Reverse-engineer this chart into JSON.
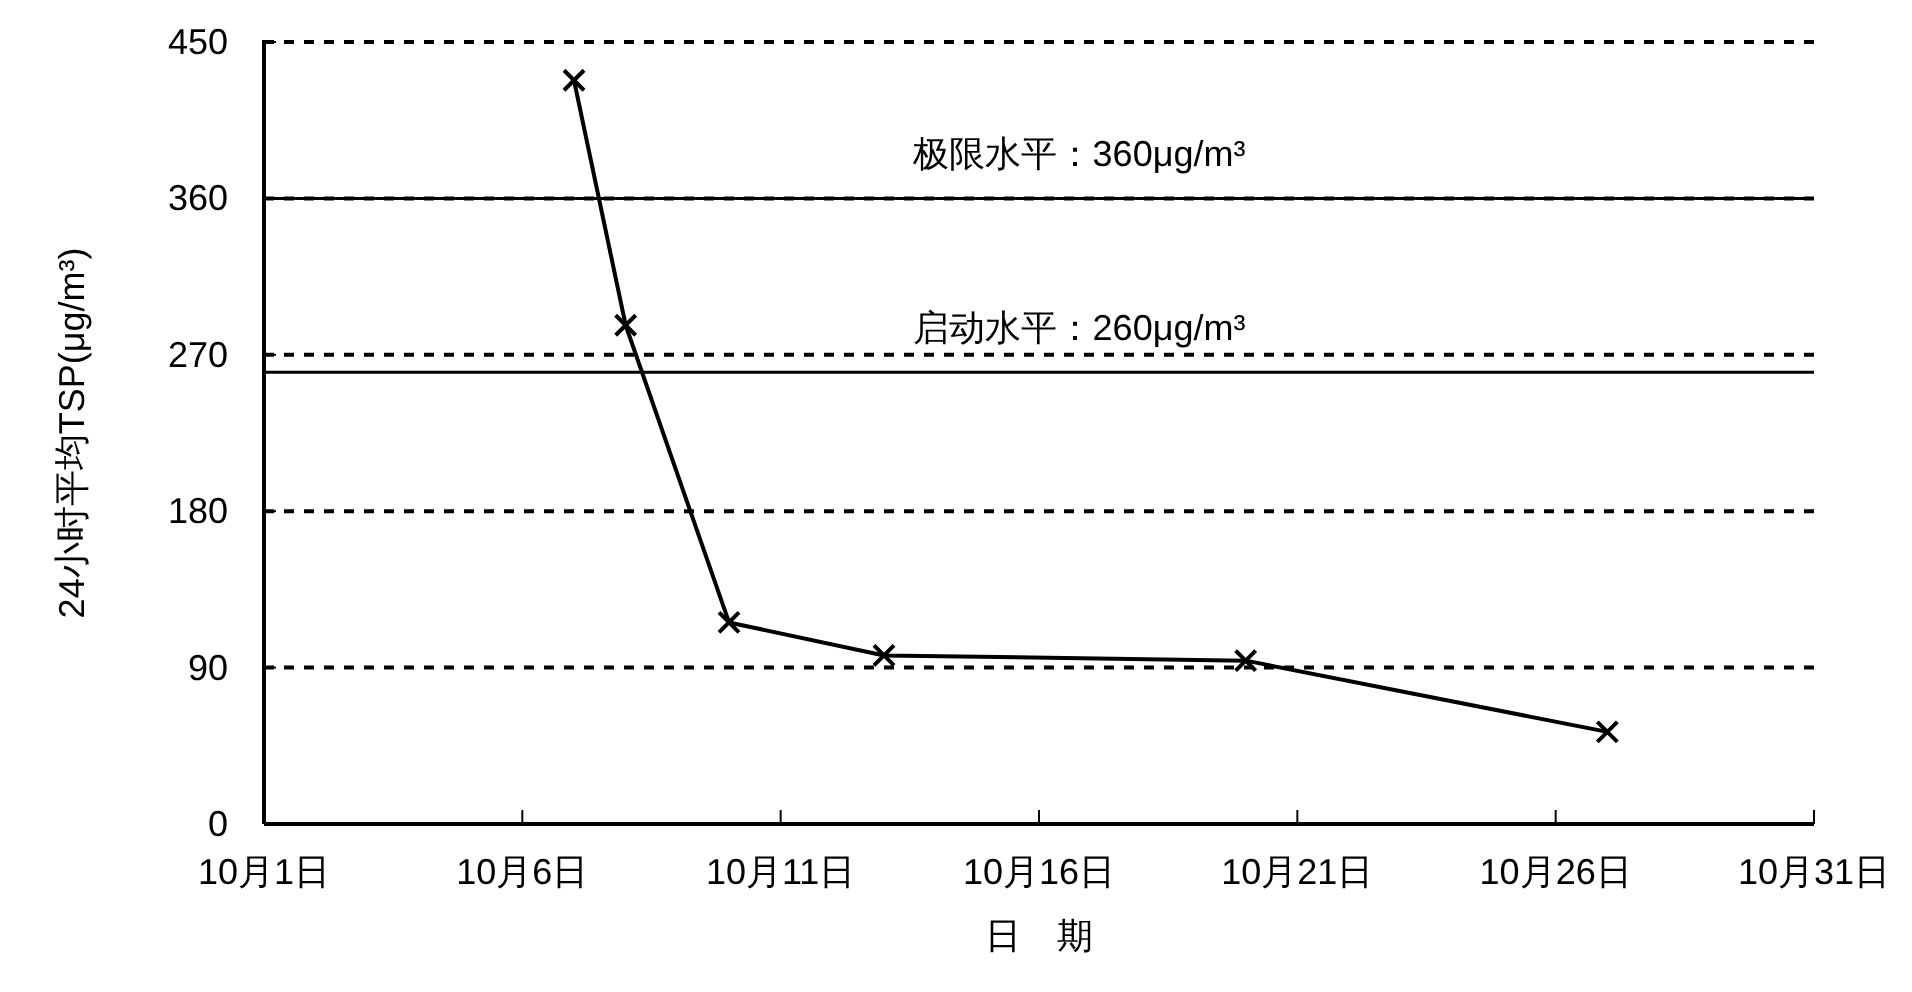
{
  "chart_data": {
    "type": "line",
    "xlabel": "日　期",
    "ylabel": "24小时平均TSP(μg/m³)",
    "x": [
      "--10-07",
      "--10-08",
      "--10-10",
      "--10-13",
      "--10-20",
      "--10-27"
    ],
    "series": [
      {
        "color": "#000000",
        "values": [
          428,
          287,
          116,
          97,
          94,
          53
        ]
      }
    ],
    "xlim": [
      "--10-01",
      "--10-31"
    ],
    "xticks": [
      {
        "value": "--10-01",
        "label": "10月1日"
      },
      {
        "value": "--10-06",
        "label": "10月6日"
      },
      {
        "value": "--10-11",
        "label": "10月11日"
      },
      {
        "value": "--10-16",
        "label": "10月16日"
      },
      {
        "value": "--10-21",
        "label": "10月21日"
      },
      {
        "value": "--10-26",
        "label": "10月26日"
      },
      {
        "value": "--10-31",
        "label": "10月31日"
      }
    ],
    "ylim": [
      0,
      450
    ],
    "yticks": [
      0,
      90,
      180,
      270,
      360,
      450
    ],
    "grid": "y",
    "marker": "cross",
    "line_style": "solid",
    "ref_lines": [
      {
        "axis": "y",
        "value": 360,
        "label": "极限水平：360μg/m³",
        "color": "#000000",
        "line_style": "solid"
      },
      {
        "axis": "y",
        "value": 260,
        "label": "启动水平：260μg/m³",
        "color": "#000000",
        "line_style": "solid"
      }
    ]
  }
}
